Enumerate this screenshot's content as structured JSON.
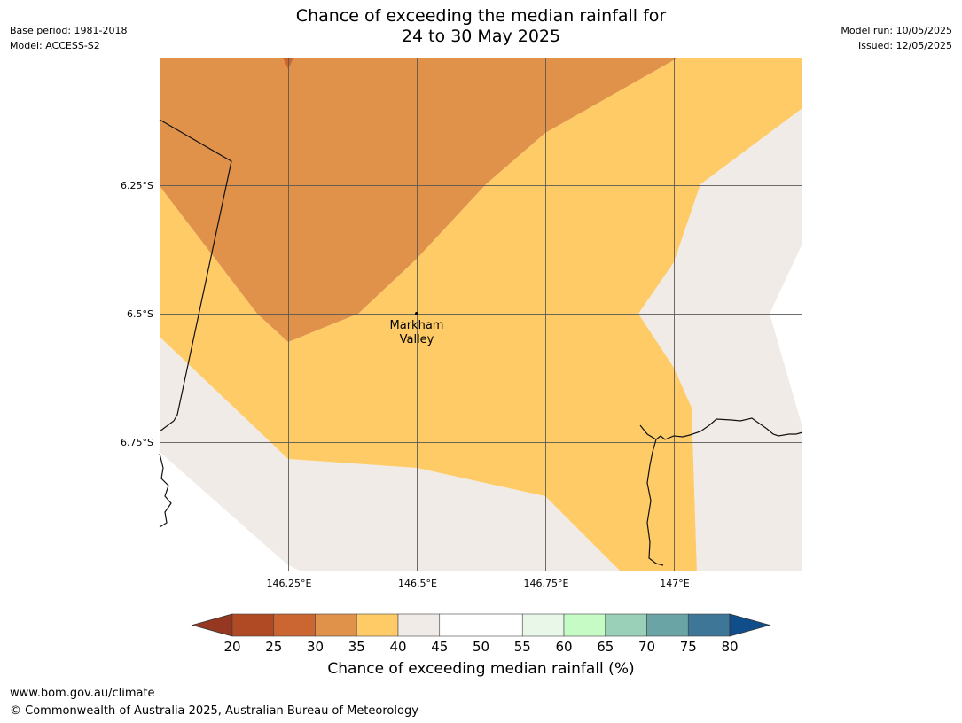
{
  "header": {
    "title_line1": "Chance of exceeding the median rainfall for",
    "title_line2": "24 to 30 May 2025",
    "base_period": "Base period: 1981-2018",
    "model": "Model: ACCESS-S2",
    "model_run": "Model run: 10/05/2025",
    "issued": "Issued: 12/05/2025"
  },
  "map": {
    "lat_labels": [
      "6.25°S",
      "6.5°S",
      "6.75°S"
    ],
    "lon_labels": [
      "146.25°E",
      "146.5°E",
      "146.75°E",
      "147°E"
    ],
    "place": {
      "name_line1": "Markham",
      "name_line2": "Valley"
    },
    "region_colors": {
      "30-35": "#e0924a",
      "35-40": "#fecb67",
      "40-45": "#f0ebe6"
    }
  },
  "colorbar": {
    "title": "Chance of exceeding median rainfall (%)",
    "ticks": [
      "20",
      "25",
      "30",
      "35",
      "40",
      "45",
      "50",
      "55",
      "60",
      "65",
      "70",
      "75",
      "80"
    ],
    "under_color": "#963821",
    "over_color": "#0f4e8b",
    "bins": [
      {
        "range": "20-25",
        "color": "#b04a25"
      },
      {
        "range": "25-30",
        "color": "#cb6531"
      },
      {
        "range": "30-35",
        "color": "#e0924a"
      },
      {
        "range": "35-40",
        "color": "#fecb67"
      },
      {
        "range": "40-45",
        "color": "#f0ebe6"
      },
      {
        "range": "45-50",
        "color": "#ffffff"
      },
      {
        "range": "50-55",
        "color": "#ffffff"
      },
      {
        "range": "55-60",
        "color": "#e9f7e9"
      },
      {
        "range": "60-65",
        "color": "#c6fbc6"
      },
      {
        "range": "65-70",
        "color": "#9acfb8"
      },
      {
        "range": "70-75",
        "color": "#6aa4a4"
      },
      {
        "range": "75-80",
        "color": "#3e7697"
      }
    ]
  },
  "footer": {
    "url": "www.bom.gov.au/climate",
    "copyright": "© Commonwealth of Australia 2025, Australian Bureau of Meteorology"
  }
}
